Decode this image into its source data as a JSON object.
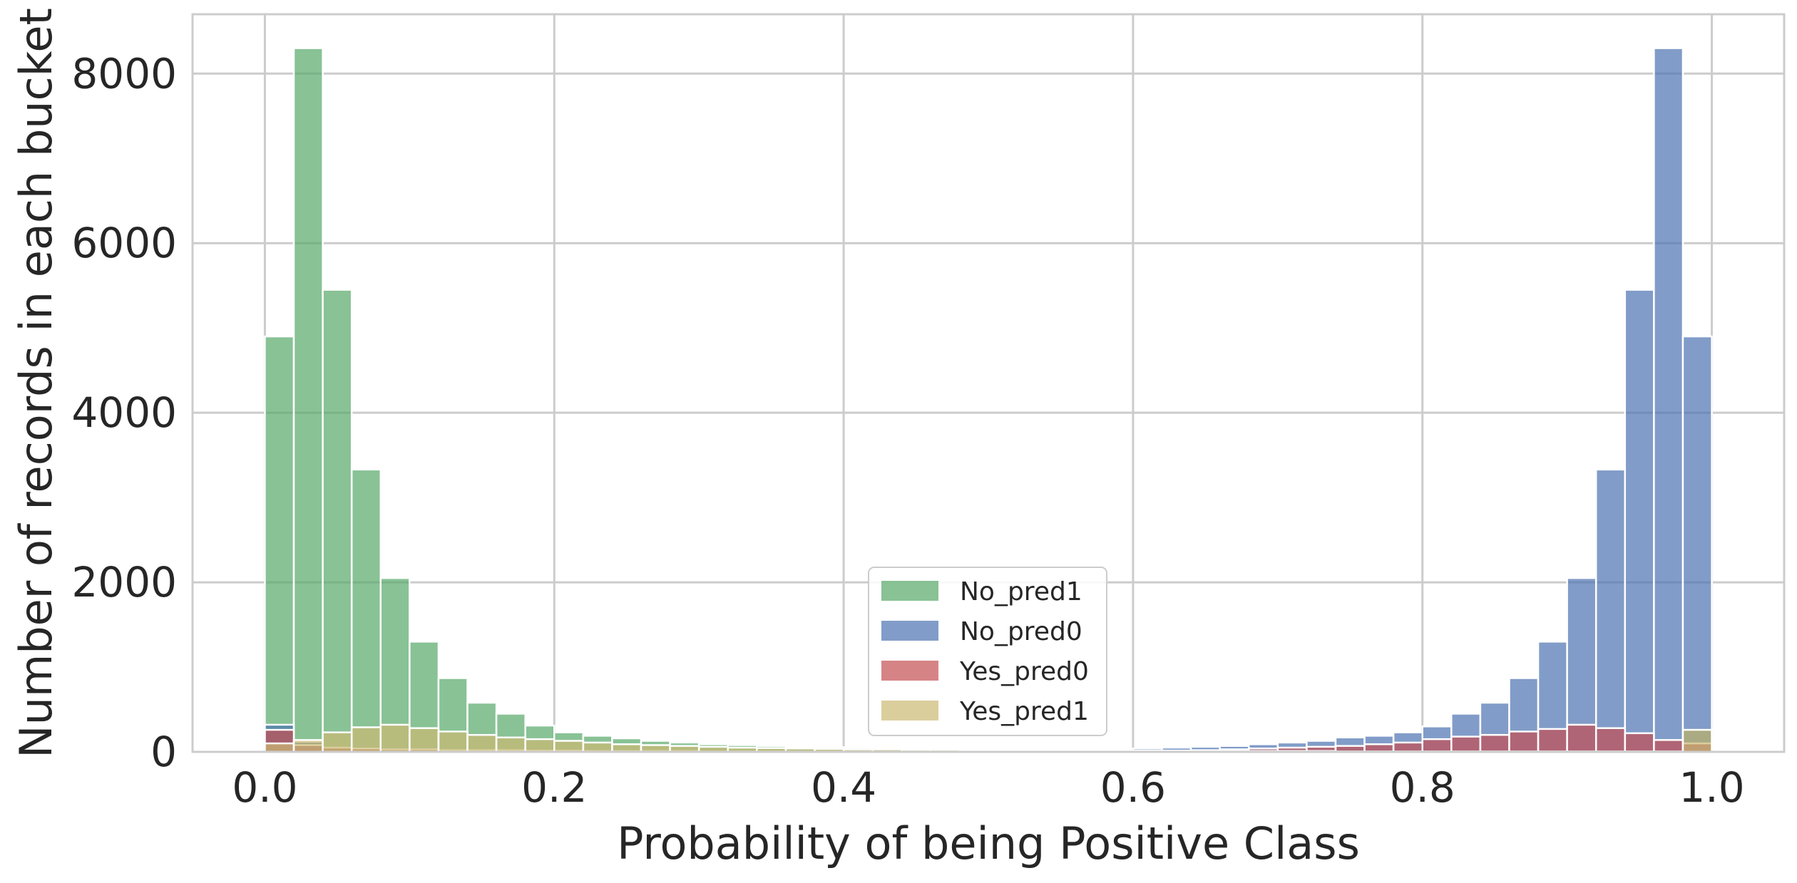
{
  "chart_data": {
    "type": "histogram",
    "xlabel": "Probability of being Positive Class",
    "ylabel": "Number of records in each bucket",
    "xlim": [
      -0.05,
      1.05
    ],
    "ylim": [
      0,
      8700
    ],
    "xticks": [
      0.0,
      0.2,
      0.4,
      0.6,
      0.8,
      1.0
    ],
    "xtick_labels": [
      "0.0",
      "0.2",
      "0.4",
      "0.6",
      "0.8",
      "1.0"
    ],
    "yticks": [
      0,
      2000,
      4000,
      6000,
      8000
    ],
    "ytick_labels": [
      "0",
      "2000",
      "4000",
      "6000",
      "8000"
    ],
    "grid": true,
    "legend_position": "bottom-center",
    "bin_width": 0.02,
    "bin_starts": [
      0.0,
      0.02,
      0.04,
      0.06,
      0.08,
      0.1,
      0.12,
      0.14,
      0.16,
      0.18,
      0.2,
      0.22,
      0.24,
      0.26,
      0.28,
      0.3,
      0.32,
      0.34,
      0.36,
      0.38,
      0.4,
      0.42,
      0.44,
      0.46,
      0.48,
      0.5,
      0.52,
      0.54,
      0.56,
      0.58,
      0.6,
      0.62,
      0.64,
      0.66,
      0.68,
      0.7,
      0.72,
      0.74,
      0.76,
      0.78,
      0.8,
      0.82,
      0.84,
      0.86,
      0.88,
      0.9,
      0.92,
      0.94,
      0.96,
      0.98
    ],
    "series": [
      {
        "name": "No_pred1",
        "color": "#55a868",
        "values": [
          4900,
          8300,
          5450,
          3330,
          2050,
          1300,
          870,
          580,
          450,
          310,
          230,
          190,
          160,
          130,
          110,
          90,
          80,
          70,
          60,
          55,
          50,
          45,
          40,
          40,
          35,
          30,
          30,
          25,
          25,
          25,
          20,
          20,
          20,
          15,
          15,
          15,
          10,
          10,
          10,
          10,
          5,
          5,
          5,
          5,
          5,
          5,
          5,
          5,
          5,
          260
        ]
      },
      {
        "name": "No_pred0",
        "color": "#4c72b0",
        "values": [
          320,
          120,
          0,
          0,
          0,
          0,
          0,
          0,
          0,
          0,
          0,
          0,
          0,
          0,
          0,
          0,
          0,
          0,
          0,
          0,
          0,
          0,
          0,
          0,
          0,
          0,
          0,
          0,
          0,
          0,
          40,
          50,
          60,
          70,
          90,
          110,
          130,
          170,
          190,
          230,
          300,
          450,
          580,
          870,
          1300,
          2050,
          3330,
          5450,
          8300,
          4900
        ]
      },
      {
        "name": "Yes_pred0",
        "color": "#c44e52",
        "values": [
          260,
          80,
          50,
          40,
          30,
          30,
          20,
          20,
          20,
          15,
          15,
          10,
          10,
          10,
          10,
          5,
          5,
          5,
          5,
          5,
          5,
          5,
          5,
          5,
          5,
          5,
          5,
          5,
          10,
          10,
          10,
          15,
          20,
          30,
          40,
          50,
          60,
          70,
          90,
          110,
          150,
          180,
          200,
          240,
          270,
          320,
          280,
          220,
          140,
          100
        ]
      },
      {
        "name": "Yes_pred1",
        "color": "#ccb974",
        "values": [
          100,
          140,
          230,
          290,
          320,
          280,
          240,
          200,
          170,
          150,
          130,
          110,
          90,
          80,
          70,
          60,
          50,
          45,
          40,
          35,
          30,
          30,
          25,
          25,
          20,
          20,
          20,
          15,
          15,
          15,
          15,
          10,
          10,
          10,
          10,
          10,
          10,
          5,
          5,
          5,
          5,
          5,
          5,
          5,
          5,
          5,
          5,
          5,
          5,
          260
        ]
      }
    ]
  }
}
